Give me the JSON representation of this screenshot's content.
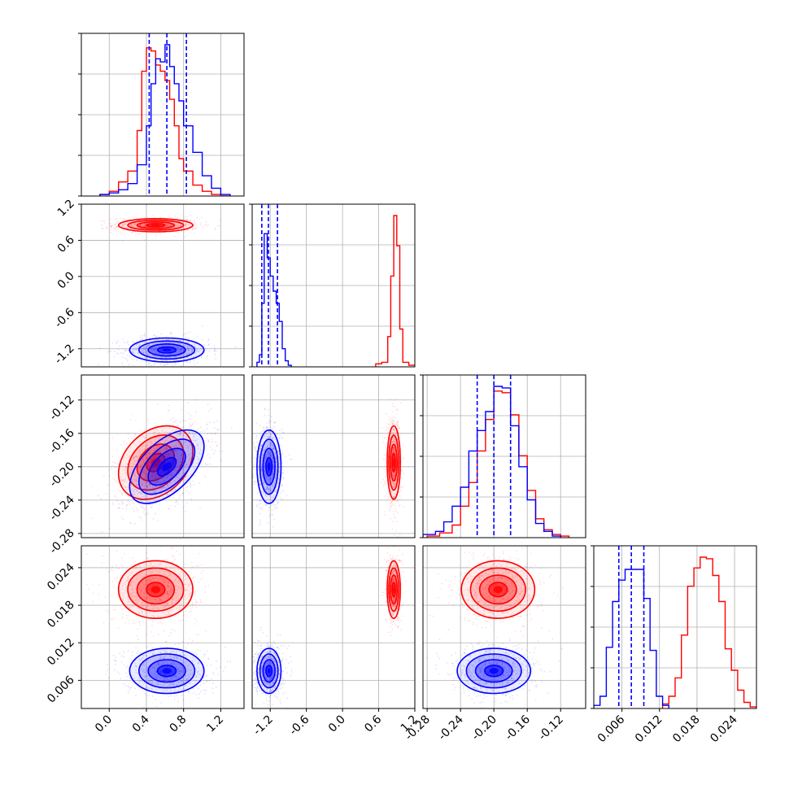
{
  "chart_data": {
    "type": "corner",
    "grid": true,
    "colors": {
      "model_a": "#ff0000",
      "model_b": "#0000ff"
    },
    "parameters": [
      {
        "range": [
          -0.3,
          1.45
        ],
        "ticks": [
          "0.0",
          "0.4",
          "0.8",
          "1.2"
        ],
        "tick_values": [
          0.0,
          0.4,
          0.8,
          1.2
        ]
      },
      {
        "range": [
          -1.5,
          1.2
        ],
        "ticks": [
          "-1.2",
          "-0.6",
          "0.0",
          "0.6",
          "1.2"
        ],
        "tick_values": [
          -1.2,
          -0.6,
          0.0,
          0.6,
          1.2
        ]
      },
      {
        "range": [
          -0.285,
          -0.09
        ],
        "ticks": [
          "-0.28",
          "-0.24",
          "-0.20",
          "-0.16",
          "-0.12"
        ],
        "tick_values": [
          -0.28,
          -0.24,
          -0.2,
          -0.16,
          -0.12
        ]
      },
      {
        "range": [
          0.0015,
          0.0275
        ],
        "ticks": [
          "0.006",
          "0.012",
          "0.018",
          "0.024"
        ],
        "tick_values": [
          0.006,
          0.012,
          0.018,
          0.024
        ]
      }
    ],
    "series": [
      {
        "color": "#ff0000",
        "means": [
          0.5,
          0.85,
          -0.195,
          0.0205
        ],
        "stds": [
          0.2,
          0.055,
          0.022,
          0.0023
        ],
        "corr": [
          [
            1,
            0,
            0.3,
            0
          ],
          [
            0,
            1,
            0,
            0
          ],
          [
            0.3,
            0,
            1,
            0
          ],
          [
            0,
            0,
            0,
            1
          ]
        ],
        "hist": [
          {
            "edges": [
              -0.1,
              0.0,
              0.1,
              0.2,
              0.3,
              0.35,
              0.4,
              0.45,
              0.5,
              0.55,
              0.6,
              0.65,
              0.7,
              0.75,
              0.8,
              0.9,
              1.0,
              1.1,
              1.2,
              1.3
            ],
            "counts": [
              1,
              3,
              9,
              16,
              42,
              80,
              95,
              93,
              84,
              80,
              74,
              62,
              45,
              24,
              16,
              7,
              3,
              1,
              0
            ]
          },
          {
            "edges": [
              0.55,
              0.65,
              0.75,
              0.8,
              0.85,
              0.9,
              0.95,
              1.0,
              1.1,
              1.2
            ],
            "counts": [
              2,
              3,
              20,
              60,
              100,
              80,
              25,
              3,
              1
            ]
          },
          {
            "edges": [
              -0.28,
              -0.265,
              -0.25,
              -0.24,
              -0.23,
              -0.22,
              -0.21,
              -0.2,
              -0.19,
              -0.18,
              -0.17,
              -0.16,
              -0.15,
              -0.14,
              -0.13,
              -0.12,
              -0.11
            ],
            "counts": [
              1,
              3,
              8,
              20,
              35,
              55,
              75,
              93,
              92,
              78,
              52,
              30,
              12,
              5,
              2,
              1
            ]
          },
          {
            "edges": [
              0.0125,
              0.0135,
              0.0145,
              0.0155,
              0.0165,
              0.0175,
              0.0185,
              0.0195,
              0.0205,
              0.0215,
              0.0225,
              0.0235,
              0.0245,
              0.0255,
              0.0265,
              0.0275
            ],
            "counts": [
              3,
              8,
              20,
              48,
              80,
              92,
              99,
              98,
              87,
              70,
              39,
              25,
              12,
              4,
              1
            ]
          }
        ]
      },
      {
        "color": "#0000ff",
        "means": [
          0.62,
          -1.22,
          -0.2,
          0.0075
        ],
        "stds": [
          0.2,
          0.1,
          0.022,
          0.0018
        ],
        "corr": [
          [
            1,
            0,
            0.55,
            0
          ],
          [
            0,
            1,
            0,
            0
          ],
          [
            0.55,
            0,
            1,
            0
          ],
          [
            0,
            0,
            0,
            1
          ]
        ],
        "quantiles": [
          [
            0.43,
            0.62,
            0.83
          ],
          [
            -1.34,
            -1.23,
            -1.08
          ],
          [
            -0.22,
            -0.2,
            -0.18
          ],
          [
            0.0055,
            0.0075,
            0.0095
          ]
        ],
        "hist": [
          {
            "edges": [
              -0.1,
              0.0,
              0.1,
              0.2,
              0.3,
              0.4,
              0.45,
              0.5,
              0.55,
              0.6,
              0.65,
              0.7,
              0.75,
              0.8,
              0.9,
              1.0,
              1.1,
              1.2,
              1.3
            ],
            "counts": [
              1,
              2,
              4,
              8,
              20,
              45,
              72,
              88,
              86,
              97,
              83,
              72,
              61,
              45,
              28,
              13,
              5,
              1
            ]
          },
          {
            "edges": [
              -1.42,
              -1.38,
              -1.34,
              -1.3,
              -1.25,
              -1.2,
              -1.15,
              -1.1,
              -1.05,
              -1.0,
              -0.95,
              -0.9,
              -0.85
            ],
            "counts": [
              3,
              8,
              42,
              88,
              72,
              60,
              50,
              42,
              30,
              12,
              4,
              1
            ]
          },
          {
            "edges": [
              -0.285,
              -0.27,
              -0.26,
              -0.25,
              -0.24,
              -0.23,
              -0.22,
              -0.21,
              -0.2,
              -0.19,
              -0.18,
              -0.17,
              -0.16,
              -0.15,
              -0.14,
              -0.13,
              -0.12
            ],
            "counts": [
              2,
              4,
              10,
              20,
              32,
              55,
              68,
              80,
              96,
              95,
              71,
              45,
              24,
              9,
              4,
              1
            ]
          },
          {
            "edges": [
              0.0015,
              0.0025,
              0.0035,
              0.0045,
              0.0055,
              0.0065,
              0.0075,
              0.0085,
              0.0095,
              0.0105,
              0.0115,
              0.0125,
              0.0135
            ],
            "counts": [
              2,
              8,
              40,
              70,
              84,
              91,
              91,
              91,
              72,
              38,
              8,
              2
            ]
          }
        ]
      }
    ]
  }
}
